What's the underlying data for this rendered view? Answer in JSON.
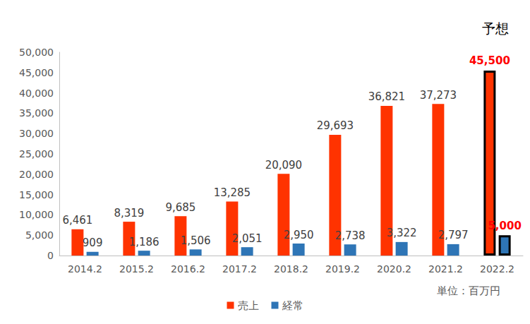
{
  "chart_data": {
    "type": "bar",
    "categories": [
      "2014.2",
      "2015.2",
      "2016.2",
      "2017.2",
      "2018.2",
      "2019.2",
      "2020.2",
      "2021.2",
      "2022.2"
    ],
    "series": [
      {
        "name": "売上",
        "color": "#FF3300",
        "values": [
          6461,
          8319,
          9685,
          13285,
          20090,
          29693,
          36821,
          37273,
          45500
        ],
        "value_labels": [
          "6,461",
          "8,319",
          "9,685",
          "13,285",
          "20,090",
          "29,693",
          "36,821",
          "37,273",
          "45,500"
        ]
      },
      {
        "name": "経常",
        "color": "#2E75B6",
        "values": [
          909,
          1186,
          1506,
          2051,
          2950,
          2738,
          3322,
          2797,
          5000
        ],
        "value_labels": [
          "909",
          "1,186",
          "1,506",
          "2,051",
          "2,950",
          "2,738",
          "3,322",
          "2,797",
          "5,000"
        ]
      }
    ],
    "ylim": [
      0,
      50000
    ],
    "yticks": [
      0,
      {
        "value": 5000,
        "label": "5,000"
      },
      {
        "value": 10000,
        "label": "10,000"
      },
      {
        "value": 15000,
        "label": "15,000"
      },
      {
        "value": 20000,
        "label": "20,000"
      },
      {
        "value": 25000,
        "label": "25,000"
      },
      {
        "value": 30000,
        "label": "30,000"
      },
      {
        "value": 35000,
        "label": "35,000"
      },
      {
        "value": 40000,
        "label": "40,000"
      },
      {
        "value": 45000,
        "label": "45,000"
      },
      {
        "value": 50000,
        "label": "50,000"
      }
    ],
    "grid": false,
    "legend": "bottom",
    "data_labels": true,
    "annotations": [
      {
        "text": "予想",
        "category": "2022.2"
      },
      {
        "text": "単位：百万円"
      }
    ]
  }
}
